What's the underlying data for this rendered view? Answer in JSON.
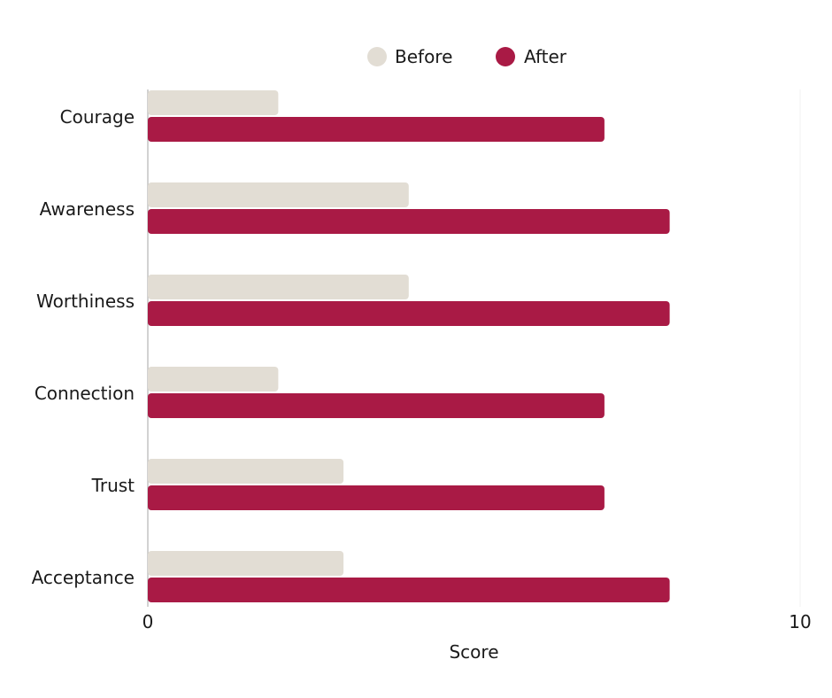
{
  "chart_data": {
    "type": "bar",
    "orientation": "horizontal",
    "categories": [
      "Courage",
      "Awareness",
      "Worthiness",
      "Connection",
      "Trust",
      "Acceptance"
    ],
    "series": [
      {
        "name": "Before",
        "values": [
          2,
          4,
          4,
          2,
          3,
          3
        ],
        "color": "#e2ddd4"
      },
      {
        "name": "After",
        "values": [
          7,
          8,
          8,
          7,
          7,
          8
        ],
        "color": "#a91a45"
      }
    ],
    "xlabel": "Score",
    "ylabel": "",
    "xlim": [
      0,
      10
    ],
    "xticks": [
      "0",
      "10"
    ],
    "grid": false,
    "legend_position": "top-center"
  }
}
